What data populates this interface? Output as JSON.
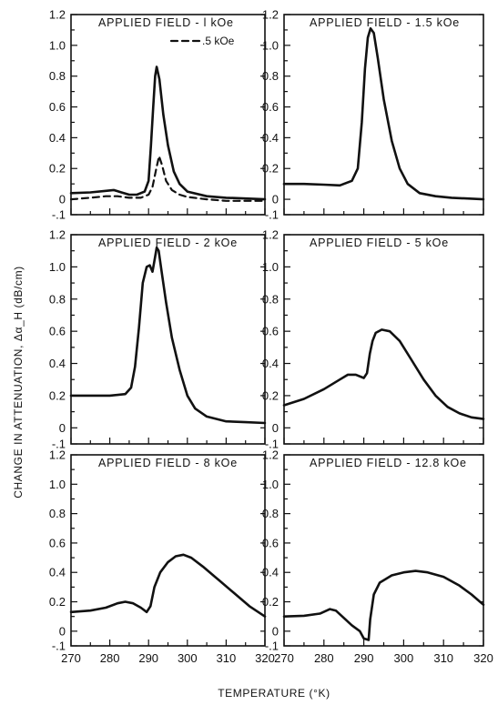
{
  "chart_data": {
    "type": "line",
    "ylabel": "CHANGE IN ATTENUATION, Δα_H  (dB/cm)",
    "xlabel": "TEMPERATURE (°K)",
    "xlim": [
      270,
      320
    ],
    "ylim": [
      -0.1,
      1.2
    ],
    "x_ticks": [
      "270",
      "280",
      "290",
      "300",
      "310",
      "320"
    ],
    "y_ticks": [
      "-.1",
      "0",
      "0.2",
      "0.4",
      "0.6",
      "0.8",
      "1.0",
      "1.2"
    ],
    "panels": [
      {
        "title": "APPLIED FIELD - l kOe",
        "series": [
          {
            "name": "",
            "style": "solid",
            "points": [
              [
                270,
                0.04
              ],
              [
                275,
                0.045
              ],
              [
                279,
                0.055
              ],
              [
                281,
                0.06
              ],
              [
                283,
                0.045
              ],
              [
                285,
                0.03
              ],
              [
                287,
                0.03
              ],
              [
                289,
                0.05
              ],
              [
                290,
                0.12
              ],
              [
                290.6,
                0.35
              ],
              [
                291.2,
                0.6
              ],
              [
                291.7,
                0.8
              ],
              [
                292.1,
                0.86
              ],
              [
                292.8,
                0.78
              ],
              [
                293.8,
                0.55
              ],
              [
                295,
                0.35
              ],
              [
                296.5,
                0.18
              ],
              [
                298,
                0.1
              ],
              [
                300,
                0.05
              ],
              [
                305,
                0.02
              ],
              [
                310,
                0.01
              ],
              [
                315,
                0.005
              ],
              [
                320,
                0.0
              ]
            ]
          },
          {
            "name": ".5 kOe",
            "style": "dashed",
            "points": [
              [
                270,
                0.0
              ],
              [
                275,
                0.01
              ],
              [
                279,
                0.02
              ],
              [
                282,
                0.02
              ],
              [
                285,
                0.01
              ],
              [
                288,
                0.01
              ],
              [
                290,
                0.03
              ],
              [
                291,
                0.08
              ],
              [
                292,
                0.2
              ],
              [
                292.7,
                0.28
              ],
              [
                293.5,
                0.22
              ],
              [
                294.5,
                0.12
              ],
              [
                296,
                0.06
              ],
              [
                298,
                0.03
              ],
              [
                300,
                0.015
              ],
              [
                305,
                0.0
              ],
              [
                310,
                -0.01
              ],
              [
                320,
                -0.01
              ]
            ]
          }
        ]
      },
      {
        "title": "APPLIED FIELD - 1.5 kOe",
        "series": [
          {
            "name": "",
            "style": "solid",
            "points": [
              [
                270,
                0.1
              ],
              [
                275,
                0.1
              ],
              [
                280,
                0.095
              ],
              [
                284,
                0.09
              ],
              [
                287,
                0.12
              ],
              [
                288.5,
                0.2
              ],
              [
                289.5,
                0.5
              ],
              [
                290.3,
                0.85
              ],
              [
                291,
                1.05
              ],
              [
                291.7,
                1.11
              ],
              [
                292.5,
                1.08
              ],
              [
                293.5,
                0.92
              ],
              [
                295,
                0.65
              ],
              [
                297,
                0.38
              ],
              [
                299,
                0.2
              ],
              [
                301,
                0.1
              ],
              [
                304,
                0.04
              ],
              [
                308,
                0.02
              ],
              [
                312,
                0.01
              ],
              [
                320,
                0.0
              ]
            ]
          }
        ]
      },
      {
        "title": "APPLIED FIELD - 2  kOe",
        "series": [
          {
            "name": "",
            "style": "solid",
            "points": [
              [
                270,
                0.2
              ],
              [
                275,
                0.2
              ],
              [
                280,
                0.2
              ],
              [
                284,
                0.21
              ],
              [
                285.5,
                0.25
              ],
              [
                286.5,
                0.38
              ],
              [
                287.5,
                0.62
              ],
              [
                288.5,
                0.9
              ],
              [
                289.5,
                1.0
              ],
              [
                290.3,
                1.01
              ],
              [
                291,
                0.97
              ],
              [
                291.6,
                1.05
              ],
              [
                292.1,
                1.12
              ],
              [
                292.6,
                1.1
              ],
              [
                293.3,
                0.98
              ],
              [
                294.5,
                0.78
              ],
              [
                296,
                0.56
              ],
              [
                298,
                0.36
              ],
              [
                300,
                0.2
              ],
              [
                302,
                0.12
              ],
              [
                305,
                0.07
              ],
              [
                310,
                0.04
              ],
              [
                315,
                0.035
              ],
              [
                320,
                0.03
              ]
            ]
          }
        ]
      },
      {
        "title": "APPLIED FIELD - 5  kOe",
        "series": [
          {
            "name": "",
            "style": "solid",
            "points": [
              [
                270,
                0.14
              ],
              [
                275,
                0.18
              ],
              [
                280,
                0.24
              ],
              [
                284,
                0.3
              ],
              [
                286,
                0.33
              ],
              [
                288,
                0.33
              ],
              [
                290,
                0.31
              ],
              [
                290.8,
                0.34
              ],
              [
                291.5,
                0.46
              ],
              [
                292.2,
                0.54
              ],
              [
                293,
                0.59
              ],
              [
                294.5,
                0.61
              ],
              [
                296.5,
                0.6
              ],
              [
                299,
                0.54
              ],
              [
                302,
                0.42
              ],
              [
                305,
                0.3
              ],
              [
                308,
                0.2
              ],
              [
                311,
                0.13
              ],
              [
                314,
                0.09
              ],
              [
                317,
                0.065
              ],
              [
                320,
                0.055
              ]
            ]
          }
        ]
      },
      {
        "title": "APPLIED FIELD - 8 kOe",
        "series": [
          {
            "name": "",
            "style": "solid",
            "points": [
              [
                270,
                0.13
              ],
              [
                275,
                0.14
              ],
              [
                279,
                0.16
              ],
              [
                282,
                0.19
              ],
              [
                284,
                0.2
              ],
              [
                286,
                0.19
              ],
              [
                288,
                0.16
              ],
              [
                289.5,
                0.13
              ],
              [
                290.5,
                0.17
              ],
              [
                291.5,
                0.3
              ],
              [
                293,
                0.4
              ],
              [
                295,
                0.47
              ],
              [
                297,
                0.51
              ],
              [
                299,
                0.52
              ],
              [
                301,
                0.5
              ],
              [
                304,
                0.44
              ],
              [
                308,
                0.35
              ],
              [
                312,
                0.26
              ],
              [
                316,
                0.17
              ],
              [
                320,
                0.1
              ]
            ]
          }
        ]
      },
      {
        "title": "APPLIED FIELD - 12.8 kOe",
        "series": [
          {
            "name": "",
            "style": "solid",
            "points": [
              [
                270,
                0.1
              ],
              [
                275,
                0.105
              ],
              [
                279,
                0.12
              ],
              [
                281.5,
                0.15
              ],
              [
                283,
                0.14
              ],
              [
                285,
                0.09
              ],
              [
                287,
                0.04
              ],
              [
                289,
                0.0
              ],
              [
                290,
                -0.05
              ],
              [
                291.2,
                -0.06
              ],
              [
                291.6,
                0.08
              ],
              [
                292.5,
                0.25
              ],
              [
                294,
                0.33
              ],
              [
                297,
                0.38
              ],
              [
                300,
                0.4
              ],
              [
                303,
                0.41
              ],
              [
                306,
                0.4
              ],
              [
                310,
                0.37
              ],
              [
                314,
                0.31
              ],
              [
                317,
                0.25
              ],
              [
                320,
                0.18
              ]
            ]
          }
        ]
      }
    ]
  }
}
